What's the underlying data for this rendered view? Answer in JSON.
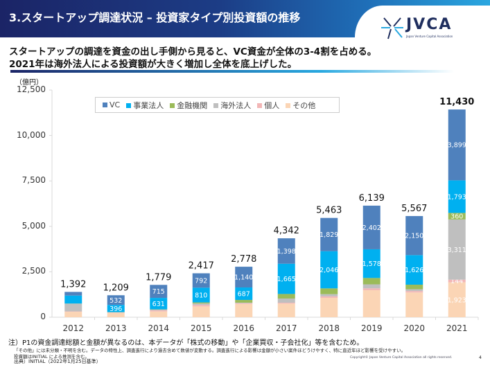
{
  "header": {
    "title": "3.スタートアップ調達状況 – 投資家タイプ別投資額の推移",
    "logo_text": "JVCA",
    "logo_sub": "Japan Venture Capital Association"
  },
  "lead": [
    "スタートアップの調達を資金の出し手側から見ると、VC資金が全体の3-4割を占める。",
    "2021年は海外法人による投資額が大きく増加し全体を底上げした。"
  ],
  "chart_data": {
    "type": "bar",
    "stacked": true,
    "ylabel": "（億円）",
    "ylim": [
      0,
      12500
    ],
    "yticks": [
      "0",
      "2,500",
      "5,000",
      "7,500",
      "10,000",
      "12,500"
    ],
    "grid": false,
    "legend_position": "top",
    "categories": [
      "2012",
      "2013",
      "2014",
      "2015",
      "2016",
      "2017",
      "2018",
      "2019",
      "2020",
      "2021"
    ],
    "totals": [
      "1,392",
      "1,209",
      "1,779",
      "2,417",
      "2,778",
      "4,342",
      "5,463",
      "6,139",
      "5,567",
      "11,430"
    ],
    "series": [
      {
        "name": "その他",
        "color": "#fbd5b5",
        "values": [
          302,
          240,
          318,
          595,
          731,
          749,
          1068,
          1489,
          1361,
          1923
        ]
      },
      {
        "name": "個人",
        "color": "#f2b6b6",
        "values": [
          20,
          20,
          60,
          80,
          40,
          50,
          80,
          100,
          80,
          144
        ]
      },
      {
        "name": "海外法人",
        "color": "#bfbfbf",
        "values": [
          420,
          11,
          40,
          80,
          30,
          230,
          120,
          220,
          100,
          3311
        ]
      },
      {
        "name": "金融機関",
        "color": "#9bbb59",
        "values": [
          10,
          10,
          15,
          60,
          150,
          250,
          320,
          350,
          250,
          360
        ]
      },
      {
        "name": "事業法人",
        "color": "#00b0f0",
        "values": [
          440,
          396,
          631,
          810,
          687,
          1665,
          2046,
          1578,
          1626,
          1793
        ]
      },
      {
        "name": "VC",
        "color": "#4f81bd",
        "values": [
          200,
          532,
          715,
          792,
          1140,
          1398,
          1829,
          2402,
          2150,
          3899
        ]
      }
    ],
    "legend_order": [
      "VC",
      "事業法人",
      "金融機関",
      "海外法人",
      "個人",
      "その他"
    ]
  },
  "footer": {
    "note1": "注）P1の資金調達総額と金額が異なるのは、本データが「株式の移動」や「企業買収・子会社化」等を含むため。",
    "note2": "「その他」には未分類・不明を含む。データの特性上、調査進行により過去含めて数値が変動する。調査進行による影響は金額が小さい案件ほどうけやすく、特に直近年ほど影響を受けやすい。",
    "note3": "投資額はINITIAL による推測を含む。",
    "source": "出典）INITIAL（2022年1月25日基準）",
    "copyright": "Copyright© Japan Venture Capital Association all rights reserved.",
    "page": "4"
  }
}
